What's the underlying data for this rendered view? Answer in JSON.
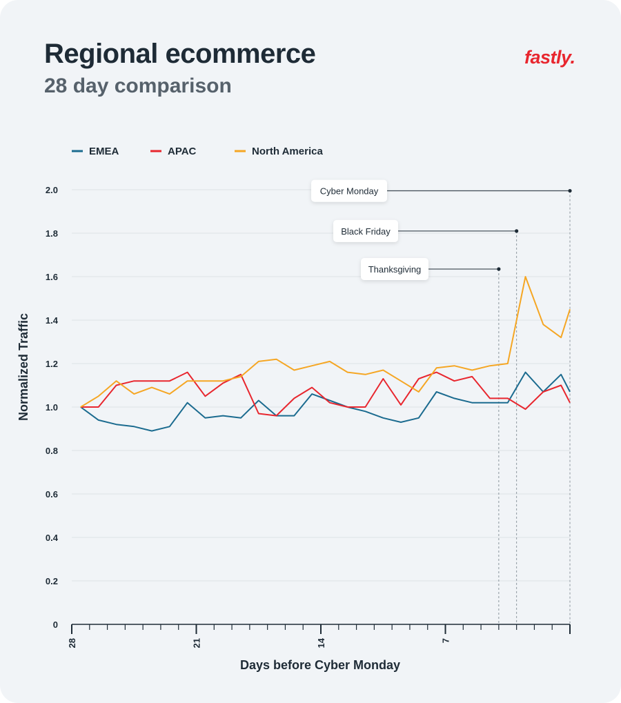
{
  "header": {
    "title": "Regional ecommerce",
    "subtitle": "28 day comparison",
    "logo_text": "fastly."
  },
  "colors": {
    "emea": "#1b6b8f",
    "apac": "#e8262e",
    "north_america": "#f5a623",
    "grid": "#dde2e6",
    "axis": "#1e2b36"
  },
  "chart_data": {
    "type": "line",
    "xlabel": "Days before Cyber Monday",
    "ylabel": "Normalized Traffic",
    "ylim": [
      0,
      2.0
    ],
    "xlim": [
      28,
      0
    ],
    "y_ticks": [
      "0",
      "0.2",
      "0.4",
      "0.6",
      "0.8",
      "1.0",
      "1.2",
      "1.4",
      "1.6",
      "1.8",
      "2.0"
    ],
    "x_ticks": [
      {
        "value": 28,
        "label": "28"
      },
      {
        "value": 21,
        "label": "21"
      },
      {
        "value": 14,
        "label": "14"
      },
      {
        "value": 7,
        "label": "7"
      }
    ],
    "grid": "horizontal",
    "legend_position": "top-left",
    "x": [
      27.5,
      26.5,
      25.5,
      24.5,
      23.5,
      22.5,
      21.5,
      20.5,
      19.5,
      18.5,
      17.5,
      16.5,
      15.5,
      14.5,
      13.5,
      12.5,
      11.5,
      10.5,
      9.5,
      8.5,
      7.5,
      6.5,
      5.5,
      4.5,
      3.5,
      2.5,
      1.5,
      0.5,
      0
    ],
    "series": [
      {
        "name": "EMEA",
        "values": [
          1.0,
          0.94,
          0.92,
          0.91,
          0.89,
          0.91,
          1.02,
          0.95,
          0.96,
          0.95,
          1.03,
          0.96,
          0.96,
          1.06,
          1.03,
          1.0,
          0.98,
          0.95,
          0.93,
          0.95,
          1.07,
          1.04,
          1.02,
          1.02,
          1.02,
          1.16,
          1.07,
          1.15,
          1.07
        ]
      },
      {
        "name": "APAC",
        "values": [
          1.0,
          1.0,
          1.1,
          1.12,
          1.12,
          1.12,
          1.16,
          1.05,
          1.11,
          1.15,
          0.97,
          0.96,
          1.04,
          1.09,
          1.02,
          1.0,
          1.0,
          1.13,
          1.01,
          1.13,
          1.16,
          1.12,
          1.14,
          1.04,
          1.04,
          0.99,
          1.07,
          1.1,
          1.02
        ]
      },
      {
        "name": "North America",
        "values": [
          1.0,
          1.05,
          1.12,
          1.06,
          1.09,
          1.06,
          1.12,
          1.12,
          1.12,
          1.14,
          1.21,
          1.22,
          1.17,
          1.19,
          1.21,
          1.16,
          1.15,
          1.17,
          1.12,
          1.07,
          1.18,
          1.19,
          1.17,
          1.19,
          1.2,
          1.6,
          1.38,
          1.32,
          1.45
        ]
      }
    ],
    "annotations": [
      {
        "label": "Cyber Monday",
        "x": 0,
        "y": 1.995
      },
      {
        "label": "Black Friday",
        "x": 3,
        "y": 1.81
      },
      {
        "label": "Thanksgiving",
        "x": 4,
        "y": 1.635
      }
    ]
  }
}
